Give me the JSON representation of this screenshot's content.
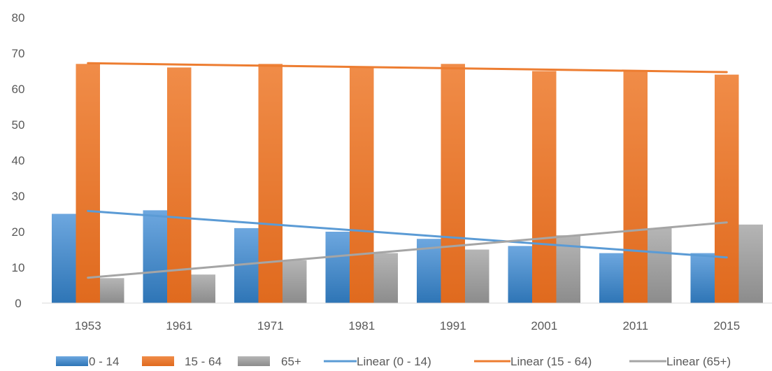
{
  "chart_data": {
    "type": "bar",
    "categories": [
      "1953",
      "1961",
      "1971",
      "1981",
      "1991",
      "2001",
      "2011",
      "2015"
    ],
    "ylim": [
      0,
      80
    ],
    "yticks": [
      "0",
      "10",
      "20",
      "30",
      "40",
      "50",
      "60",
      "70",
      "80"
    ],
    "grid": false,
    "legend_position": "bottom",
    "series": [
      {
        "name": "0 - 14",
        "values": [
          25,
          26,
          21,
          20,
          18,
          16,
          14,
          14
        ],
        "color": "#5B9BD5"
      },
      {
        "name": "15 - 64",
        "values": [
          67,
          66,
          67,
          66,
          67,
          65,
          65,
          64
        ],
        "color": "#ED7D31"
      },
      {
        "name": "65+",
        "values": [
          7,
          8,
          12,
          14,
          15,
          19,
          21,
          22
        ],
        "color": "#A5A5A5"
      }
    ],
    "trendlines": [
      {
        "name": "Linear (0 - 14)",
        "start": 25.8,
        "end": 12.8,
        "color": "#5B9BD5"
      },
      {
        "name": "Linear (15 - 64)",
        "start": 67.2,
        "end": 64.7,
        "color": "#ED7D31"
      },
      {
        "name": "Linear (65+)",
        "start": 7.1,
        "end": 22.6,
        "color": "#A5A5A5"
      }
    ]
  }
}
